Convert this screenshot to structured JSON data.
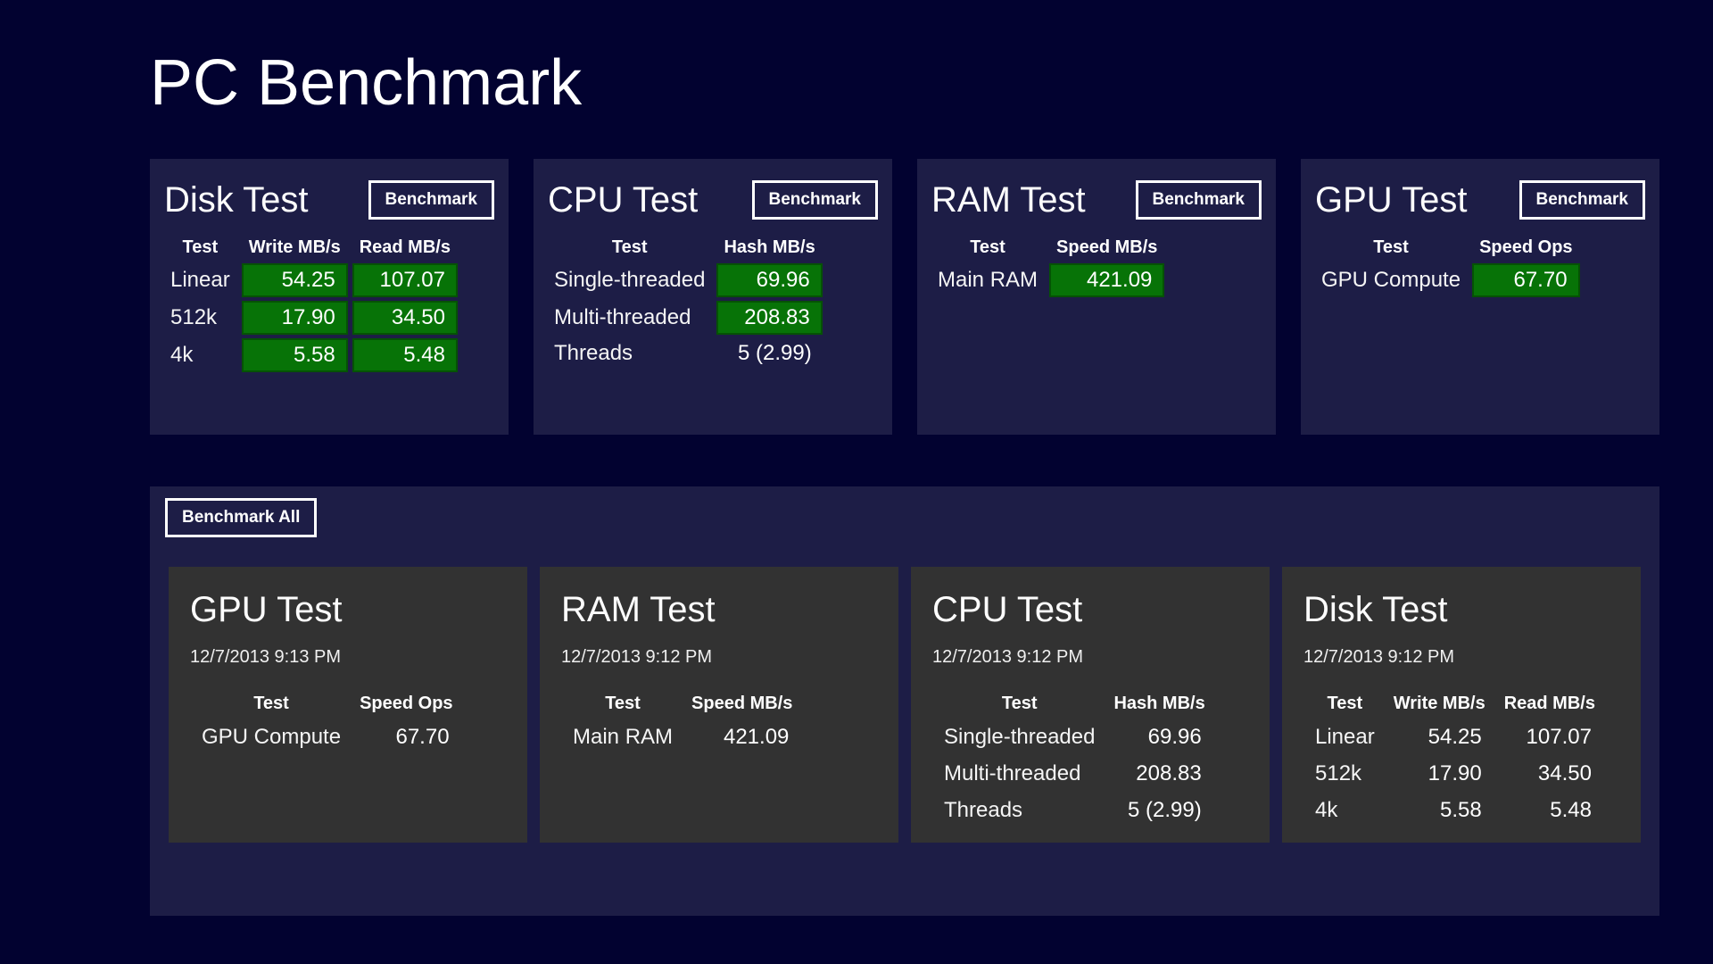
{
  "app": {
    "title": "PC Benchmark"
  },
  "colors": {
    "background": "#020230",
    "panel": "#1d1d46",
    "card": "#323232",
    "highlight_green": "#077307",
    "text": "#ffffff"
  },
  "panels": [
    {
      "id": "disk",
      "title": "Disk Test",
      "button_label": "Benchmark",
      "columns": [
        "Test",
        "Write MB/s",
        "Read MB/s"
      ],
      "rows": [
        {
          "label": "Linear",
          "values": [
            "54.25",
            "107.07"
          ],
          "highlight": [
            true,
            true
          ]
        },
        {
          "label": "512k",
          "values": [
            "17.90",
            "34.50"
          ],
          "highlight": [
            true,
            true
          ]
        },
        {
          "label": "4k",
          "values": [
            "5.58",
            "5.48"
          ],
          "highlight": [
            true,
            true
          ]
        }
      ]
    },
    {
      "id": "cpu",
      "title": "CPU Test",
      "button_label": "Benchmark",
      "columns": [
        "Test",
        "Hash MB/s"
      ],
      "rows": [
        {
          "label": "Single-threaded",
          "values": [
            "69.96"
          ],
          "highlight": [
            true
          ]
        },
        {
          "label": "Multi-threaded",
          "values": [
            "208.83"
          ],
          "highlight": [
            true
          ]
        },
        {
          "label": "Threads",
          "values": [
            "5 (2.99)"
          ],
          "highlight": [
            false
          ]
        }
      ]
    },
    {
      "id": "ram",
      "title": "RAM Test",
      "button_label": "Benchmark",
      "columns": [
        "Test",
        "Speed MB/s"
      ],
      "rows": [
        {
          "label": "Main RAM",
          "values": [
            "421.09"
          ],
          "highlight": [
            true
          ]
        }
      ]
    },
    {
      "id": "gpu",
      "title": "GPU Test",
      "button_label": "Benchmark",
      "columns": [
        "Test",
        "Speed Ops"
      ],
      "rows": [
        {
          "label": "GPU Compute",
          "values": [
            "67.70"
          ],
          "highlight": [
            true
          ]
        }
      ]
    }
  ],
  "results_section": {
    "button_label": "Benchmark All",
    "cards": [
      {
        "id": "gpu-result",
        "title": "GPU Test",
        "timestamp": "12/7/2013 9:13 PM",
        "columns": [
          "Test",
          "Speed Ops"
        ],
        "rows": [
          {
            "label": "GPU Compute",
            "values": [
              "67.70"
            ]
          }
        ]
      },
      {
        "id": "ram-result",
        "title": "RAM Test",
        "timestamp": "12/7/2013 9:12 PM",
        "columns": [
          "Test",
          "Speed MB/s"
        ],
        "rows": [
          {
            "label": "Main RAM",
            "values": [
              "421.09"
            ]
          }
        ]
      },
      {
        "id": "cpu-result",
        "title": "CPU Test",
        "timestamp": "12/7/2013 9:12 PM",
        "columns": [
          "Test",
          "Hash MB/s"
        ],
        "rows": [
          {
            "label": "Single-threaded",
            "values": [
              "69.96"
            ]
          },
          {
            "label": "Multi-threaded",
            "values": [
              "208.83"
            ]
          },
          {
            "label": "Threads",
            "values": [
              "5 (2.99)"
            ]
          }
        ]
      },
      {
        "id": "disk-result",
        "title": "Disk Test",
        "timestamp": "12/7/2013 9:12 PM",
        "columns": [
          "Test",
          "Write MB/s",
          "Read MB/s"
        ],
        "rows": [
          {
            "label": "Linear",
            "values": [
              "54.25",
              "107.07"
            ]
          },
          {
            "label": "512k",
            "values": [
              "17.90",
              "34.50"
            ]
          },
          {
            "label": "4k",
            "values": [
              "5.58",
              "5.48"
            ]
          }
        ]
      }
    ]
  }
}
